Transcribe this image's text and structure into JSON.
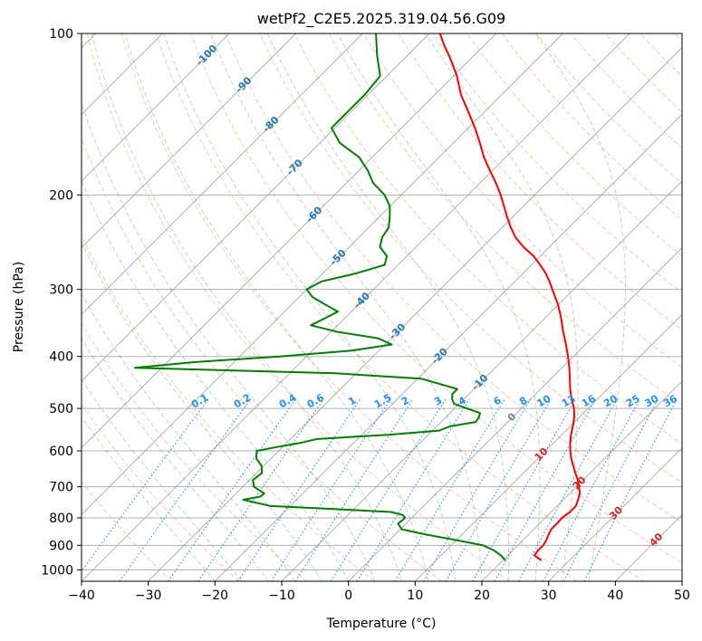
{
  "chart_data": {
    "type": "line",
    "subtype": "skew-t log-p diagram",
    "title": "wetPf2_C2E5.2025.319.04.56.G09",
    "xlabel": "Temperature (°C)",
    "ylabel": "Pressure (hPa)",
    "xlim": [
      -40,
      50
    ],
    "ylim": [
      1050,
      100
    ],
    "y_scale": "log",
    "x_ticks": [
      -40,
      -30,
      -20,
      -10,
      0,
      10,
      20,
      30,
      40,
      50
    ],
    "y_ticks": [
      100,
      200,
      300,
      400,
      500,
      600,
      700,
      800,
      900,
      1000
    ],
    "grid": true,
    "skew_degrees": 45,
    "colors": {
      "temperature": "#ff0000",
      "dewpoint": "#008000",
      "dry_adiabats": "#ff7f50",
      "moist_adiabats": "#2ca02c",
      "mixing_ratio": "#1e90ff",
      "isotherm_labels": "#1f77b4",
      "hot_isotherm_labels": "#d62728",
      "zero_isotherm_label": "#808080"
    },
    "isotherm_labels": [
      -100,
      -90,
      -80,
      -70,
      -60,
      -50,
      -40,
      -30,
      -20,
      -10,
      0,
      10,
      20,
      30,
      40
    ],
    "mixing_ratio_labels": [
      "0.1",
      "0.2",
      "0.4",
      "0.6",
      "1",
      "1.5",
      "2",
      "3",
      "4",
      "6",
      "8",
      "10",
      "13",
      "16",
      "20",
      "25",
      "30",
      "36"
    ],
    "mixing_ratio_values": [
      0.1,
      0.2,
      0.4,
      0.6,
      1,
      1.5,
      2,
      3,
      4,
      6,
      8,
      10,
      13,
      16,
      20,
      25,
      30,
      36
    ],
    "series": [
      {
        "name": "Temperature",
        "pressure": [
          960,
          940,
          920,
          900,
          880,
          860,
          840,
          820,
          800,
          780,
          760,
          740,
          720,
          700,
          680,
          660,
          640,
          620,
          600,
          580,
          560,
          540,
          520,
          500,
          480,
          460,
          440,
          420,
          400,
          380,
          360,
          340,
          320,
          300,
          290,
          280,
          270,
          260,
          250,
          240,
          230,
          220,
          210,
          200,
          190,
          180,
          170,
          160,
          150,
          140,
          130,
          120,
          110,
          105,
          100
        ],
        "temperature": [
          25.8,
          24.0,
          23.8,
          23.8,
          23.5,
          23.0,
          22.6,
          22.6,
          22.5,
          22.8,
          22.8,
          22.2,
          21.5,
          20.4,
          19.2,
          17.8,
          16.4,
          15.0,
          13.7,
          12.5,
          11.4,
          10.4,
          9.3,
          7.9,
          6.1,
          4.4,
          2.8,
          1.1,
          -0.8,
          -2.9,
          -5.2,
          -7.5,
          -10.1,
          -13.2,
          -14.8,
          -16.6,
          -18.7,
          -21.0,
          -23.9,
          -26.5,
          -28.7,
          -30.8,
          -32.9,
          -35.1,
          -37.6,
          -40.4,
          -43.3,
          -46.0,
          -49.0,
          -52.4,
          -56.1,
          -59.5,
          -63.7,
          -66.1,
          -68.4
        ]
      },
      {
        "name": "Dewpoint",
        "pressure": [
          960,
          940,
          920,
          900,
          880,
          860,
          840,
          820,
          800,
          790,
          780,
          770,
          760,
          740,
          730,
          720,
          700,
          680,
          660,
          640,
          620,
          600,
          590,
          580,
          570,
          560,
          550,
          540,
          530,
          520,
          510,
          500,
          490,
          480,
          470,
          460,
          440,
          430,
          420,
          410,
          400,
          390,
          380,
          370,
          360,
          350,
          340,
          330,
          320,
          310,
          300,
          290,
          280,
          270,
          260,
          250,
          240,
          230,
          220,
          210,
          200,
          190,
          180,
          170,
          160,
          150,
          140,
          130,
          120,
          110,
          100
        ],
        "temperature": [
          20.4,
          19.0,
          17.2,
          14.8,
          10.0,
          4.8,
          0.2,
          -1.2,
          -1.0,
          -1.8,
          -4.0,
          -13.0,
          -23.0,
          -28.0,
          -25.9,
          -25.8,
          -28.3,
          -29.5,
          -29.2,
          -30.3,
          -32.2,
          -33.3,
          -30.8,
          -28.0,
          -26.0,
          -16.0,
          -9.0,
          -8.0,
          -4.8,
          -5.0,
          -5.5,
          -8.2,
          -10.8,
          -11.8,
          -12.5,
          -12.5,
          -19.5,
          -33.2,
          -64.0,
          -56.0,
          -44.0,
          -34.0,
          -29.0,
          -32.0,
          -39.0,
          -44.0,
          -43.0,
          -42.0,
          -45.0,
          -48.0,
          -50.0,
          -49.0,
          -45.0,
          -42.0,
          -43.0,
          -45.4,
          -46.5,
          -47.0,
          -48.4,
          -50.0,
          -52.5,
          -56.0,
          -58.7,
          -62.0,
          -67.0,
          -70.5,
          -70.5,
          -70.5,
          -71.0,
          -74.5,
          -78.0
        ]
      }
    ]
  }
}
